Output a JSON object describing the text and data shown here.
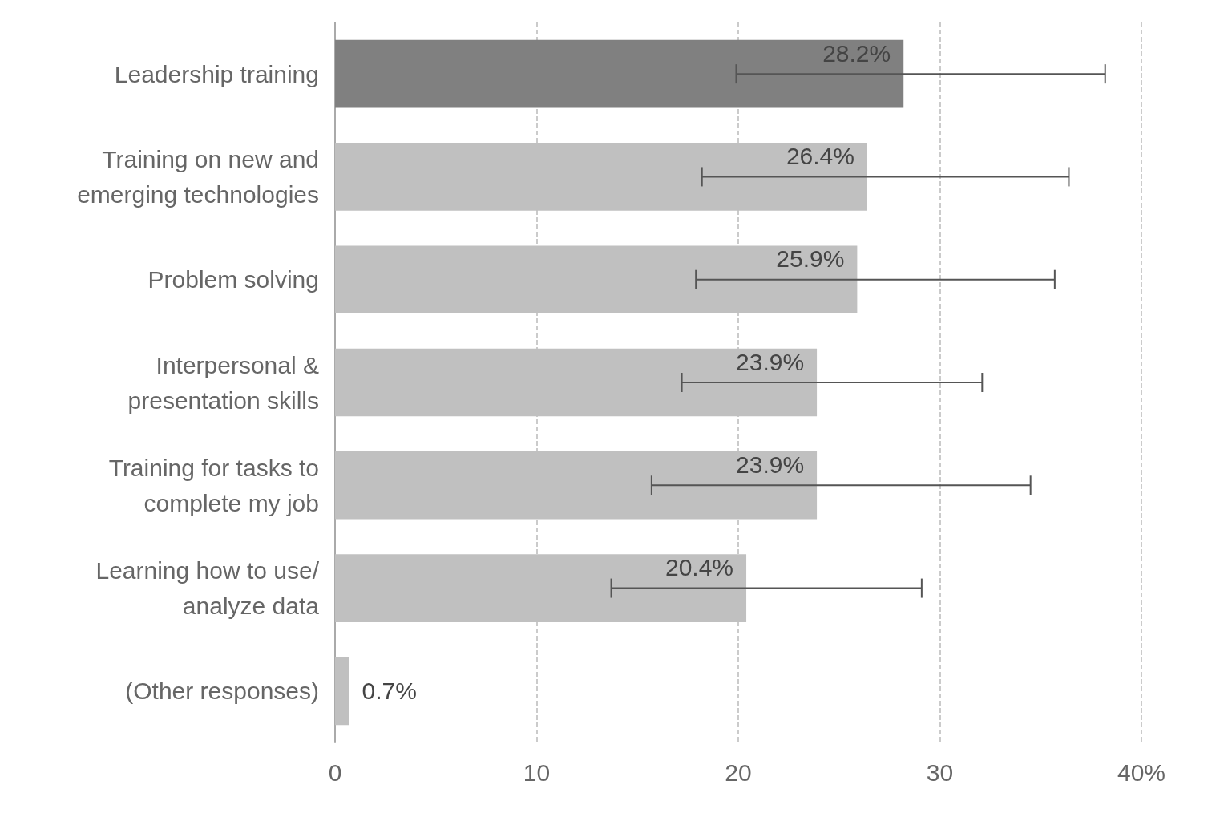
{
  "chart_data": {
    "type": "bar",
    "orientation": "horizontal",
    "categories": [
      "Leadership training",
      "Training on new and\nemerging technologies",
      "Problem solving",
      "Interpersonal &\npresentation skills",
      "Training for tasks to\ncomplete my job",
      "Learning how to use/\nanalyze data",
      "(Other responses)"
    ],
    "values": [
      28.2,
      26.4,
      25.9,
      23.9,
      23.9,
      20.4,
      0.7
    ],
    "colors": [
      "#808080",
      "#c0c0c0",
      "#c0c0c0",
      "#c0c0c0",
      "#c0c0c0",
      "#c0c0c0",
      "#c0c0c0"
    ],
    "errors": [
      [
        19.9,
        38.2
      ],
      [
        18.2,
        36.4
      ],
      [
        17.9,
        35.7
      ],
      [
        17.2,
        32.1
      ],
      [
        15.7,
        34.5
      ],
      [
        13.7,
        29.1
      ],
      null
    ],
    "value_labels": [
      "28.2%",
      "26.4%",
      "25.9%",
      "23.9%",
      "23.9%",
      "20.4%",
      "0.7%"
    ],
    "xlim": [
      0,
      40
    ],
    "xticks": [
      0,
      10,
      20,
      30,
      {
        "value": 40,
        "label": "40%"
      }
    ],
    "grid": "x"
  }
}
